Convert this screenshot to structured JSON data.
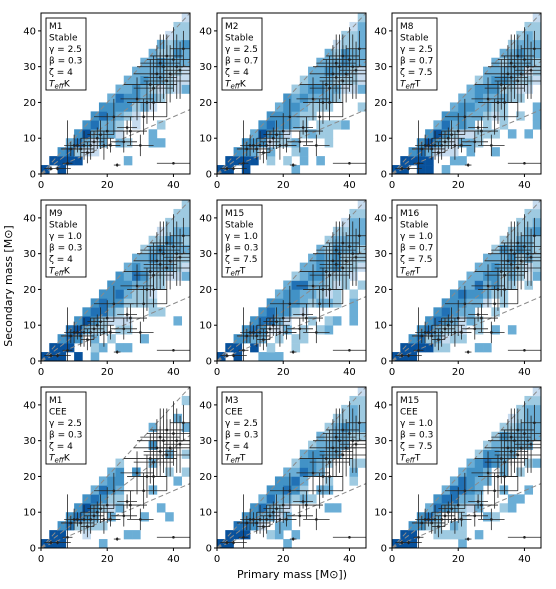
{
  "figure": {
    "xlabel": "Primary mass [M⊙])",
    "ylabel": "Secondary mass [M⊙]"
  },
  "chart_data": [
    {
      "type": "heatmap",
      "model": "M1",
      "mode": "Stable",
      "params": [
        "γ = 2.5",
        "β = 0.3",
        "ζ = 4"
      ],
      "teff": "K",
      "xlim": [
        0,
        45
      ],
      "ylim": [
        0,
        45
      ],
      "xticks": [
        "0",
        "20",
        "40"
      ],
      "yticks": [
        "0",
        "10",
        "20",
        "30",
        "40"
      ],
      "grid": false
    },
    {
      "type": "heatmap",
      "model": "M2",
      "mode": "Stable",
      "params": [
        "γ = 2.5",
        "β = 0.7",
        "ζ = 4"
      ],
      "teff": "K",
      "xlim": [
        0,
        45
      ],
      "ylim": [
        0,
        45
      ],
      "xticks": [
        "0",
        "20",
        "40"
      ],
      "yticks": [
        "0",
        "10",
        "20",
        "30",
        "40"
      ],
      "grid": false
    },
    {
      "type": "heatmap",
      "model": "M8",
      "mode": "Stable",
      "params": [
        "γ = 2.5",
        "β = 0.7",
        "ζ = 7.5"
      ],
      "teff": "T",
      "xlim": [
        0,
        45
      ],
      "ylim": [
        0,
        45
      ],
      "xticks": [
        "0",
        "20",
        "40"
      ],
      "yticks": [
        "0",
        "10",
        "20",
        "30",
        "40"
      ],
      "grid": false
    },
    {
      "type": "heatmap",
      "model": "M9",
      "mode": "Stable",
      "params": [
        "γ = 1.0",
        "β = 0.3",
        "ζ = 4"
      ],
      "teff": "K",
      "xlim": [
        0,
        45
      ],
      "ylim": [
        0,
        45
      ],
      "xticks": [
        "0",
        "20",
        "40"
      ],
      "yticks": [
        "0",
        "10",
        "20",
        "30",
        "40"
      ],
      "grid": false
    },
    {
      "type": "heatmap",
      "model": "M15",
      "mode": "Stable",
      "params": [
        "γ = 1.0",
        "β = 0.3",
        "ζ = 7.5"
      ],
      "teff": "T",
      "xlim": [
        0,
        45
      ],
      "ylim": [
        0,
        45
      ],
      "xticks": [
        "0",
        "20",
        "40"
      ],
      "yticks": [
        "0",
        "10",
        "20",
        "30",
        "40"
      ],
      "grid": false
    },
    {
      "type": "heatmap",
      "model": "M16",
      "mode": "Stable",
      "params": [
        "γ = 1.0",
        "β = 0.7",
        "ζ = 7.5"
      ],
      "teff": "T",
      "xlim": [
        0,
        45
      ],
      "ylim": [
        0,
        45
      ],
      "xticks": [
        "0",
        "20",
        "40"
      ],
      "yticks": [
        "0",
        "10",
        "20",
        "30",
        "40"
      ],
      "grid": false
    },
    {
      "type": "heatmap",
      "model": "M1",
      "mode": "CEE",
      "params": [
        "γ = 2.5",
        "β = 0.3",
        "ζ = 4"
      ],
      "teff": "K",
      "xlim": [
        0,
        45
      ],
      "ylim": [
        0,
        45
      ],
      "xticks": [
        "0",
        "20",
        "40"
      ],
      "yticks": [
        "0",
        "10",
        "20",
        "30",
        "40"
      ],
      "grid": false
    },
    {
      "type": "heatmap",
      "model": "M3",
      "mode": "CEE",
      "params": [
        "γ = 2.5",
        "β = 0.3",
        "ζ = 4"
      ],
      "teff": "T",
      "xlim": [
        0,
        45
      ],
      "ylim": [
        0,
        45
      ],
      "xticks": [
        "0",
        "20",
        "40"
      ],
      "yticks": [
        "0",
        "10",
        "20",
        "30",
        "40"
      ],
      "grid": false
    },
    {
      "type": "heatmap",
      "model": "M15",
      "mode": "CEE",
      "params": [
        "γ = 1.0",
        "β = 0.3",
        "ζ = 7.5"
      ],
      "teff": "T",
      "xlim": [
        0,
        45
      ],
      "ylim": [
        0,
        45
      ],
      "xticks": [
        "0",
        "20",
        "40"
      ],
      "yticks": [
        "0",
        "10",
        "20",
        "30",
        "40"
      ],
      "grid": false
    }
  ],
  "reference_lines": {
    "style": "dashed",
    "color": "#8a8a8a",
    "mass_ratios": [
      1.0,
      0.7,
      0.4
    ]
  },
  "observations": {
    "color": "#222222",
    "points": [
      [
        3,
        1.5,
        0.5,
        0.5
      ],
      [
        5,
        1.5,
        4,
        0.5
      ],
      [
        8,
        3,
        1.5,
        12
      ],
      [
        9,
        7,
        3,
        2
      ],
      [
        10,
        8,
        3,
        3
      ],
      [
        11,
        8,
        2,
        2
      ],
      [
        12,
        7,
        4,
        3
      ],
      [
        13,
        8,
        3,
        4
      ],
      [
        14,
        6,
        2,
        3
      ],
      [
        15,
        8,
        4,
        4
      ],
      [
        16,
        9,
        3,
        3
      ],
      [
        17,
        10,
        5,
        3
      ],
      [
        18,
        11,
        4,
        4
      ],
      [
        19,
        8,
        5,
        4
      ],
      [
        20,
        12,
        5,
        5
      ],
      [
        21,
        8,
        3,
        2
      ],
      [
        23,
        2.5,
        1,
        0.5
      ],
      [
        25,
        9,
        4,
        3
      ],
      [
        26,
        13,
        3,
        2
      ],
      [
        27,
        12,
        5,
        4
      ],
      [
        30,
        8,
        4,
        3
      ],
      [
        31,
        16,
        7,
        5
      ],
      [
        32,
        20,
        6,
        6
      ],
      [
        33,
        25,
        8,
        7
      ],
      [
        34,
        24,
        6,
        9
      ],
      [
        35,
        28,
        7,
        8
      ],
      [
        36,
        27,
        5,
        7
      ],
      [
        37,
        30,
        8,
        9
      ],
      [
        38,
        26,
        7,
        10
      ],
      [
        39,
        28,
        6,
        8
      ],
      [
        40,
        32,
        8,
        9
      ],
      [
        41,
        30,
        7,
        9
      ],
      [
        42,
        29,
        5,
        8
      ],
      [
        40,
        3,
        5,
        0.3
      ],
      [
        43,
        35,
        4,
        5
      ],
      [
        38,
        33,
        5,
        6
      ],
      [
        36,
        31,
        6,
        8
      ],
      [
        34,
        20,
        4,
        5
      ],
      [
        29,
        21,
        5,
        6
      ],
      [
        22,
        16,
        6,
        5
      ]
    ]
  },
  "heatmap_colors": [
    "#08306b",
    "#08519c",
    "#2171b5",
    "#4292c6",
    "#6baed6",
    "#9ecae1",
    "#c6dbef",
    "#deebf7"
  ]
}
